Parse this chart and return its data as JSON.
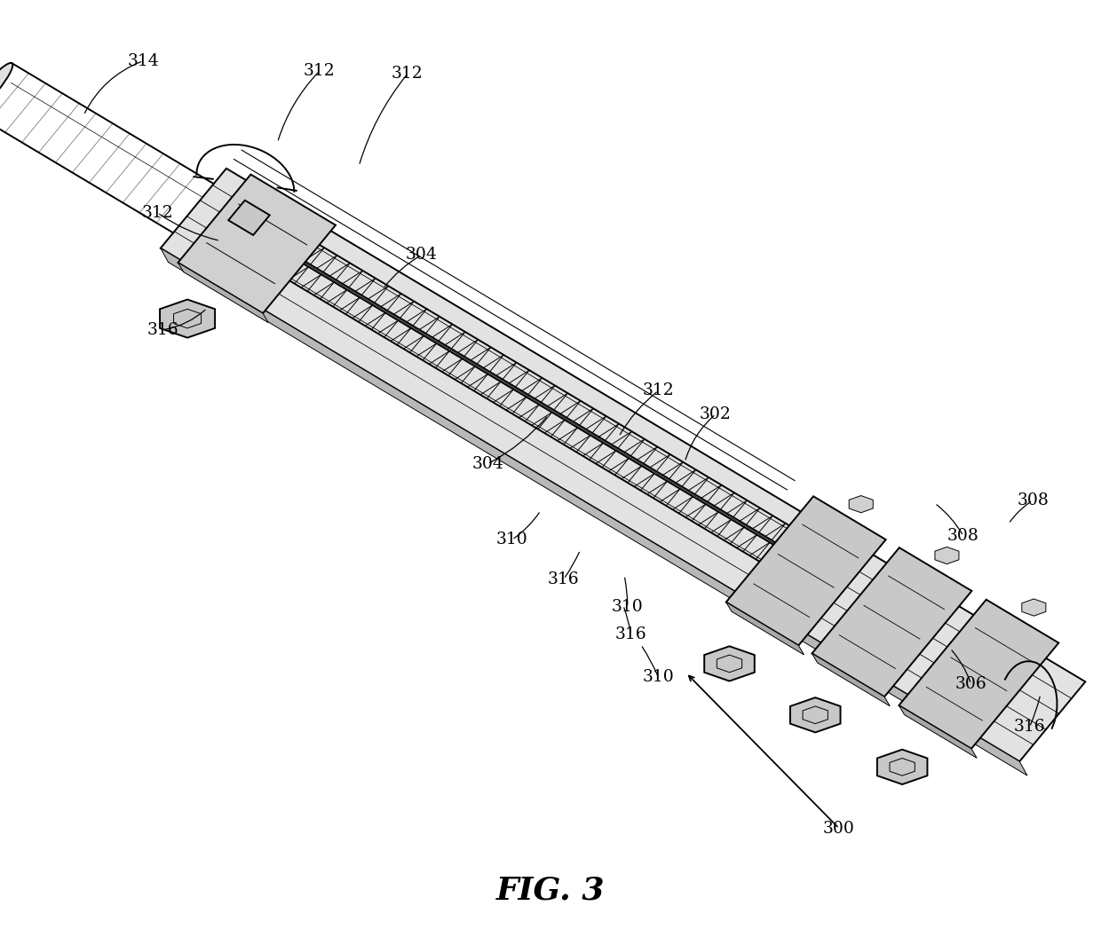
{
  "title": "FIG. 3",
  "title_fontsize": 26,
  "title_fontweight": "bold",
  "title_fontstyle": "italic",
  "background_color": "#ffffff",
  "fig_width": 12.4,
  "fig_height": 10.56,
  "dpi": 100
}
